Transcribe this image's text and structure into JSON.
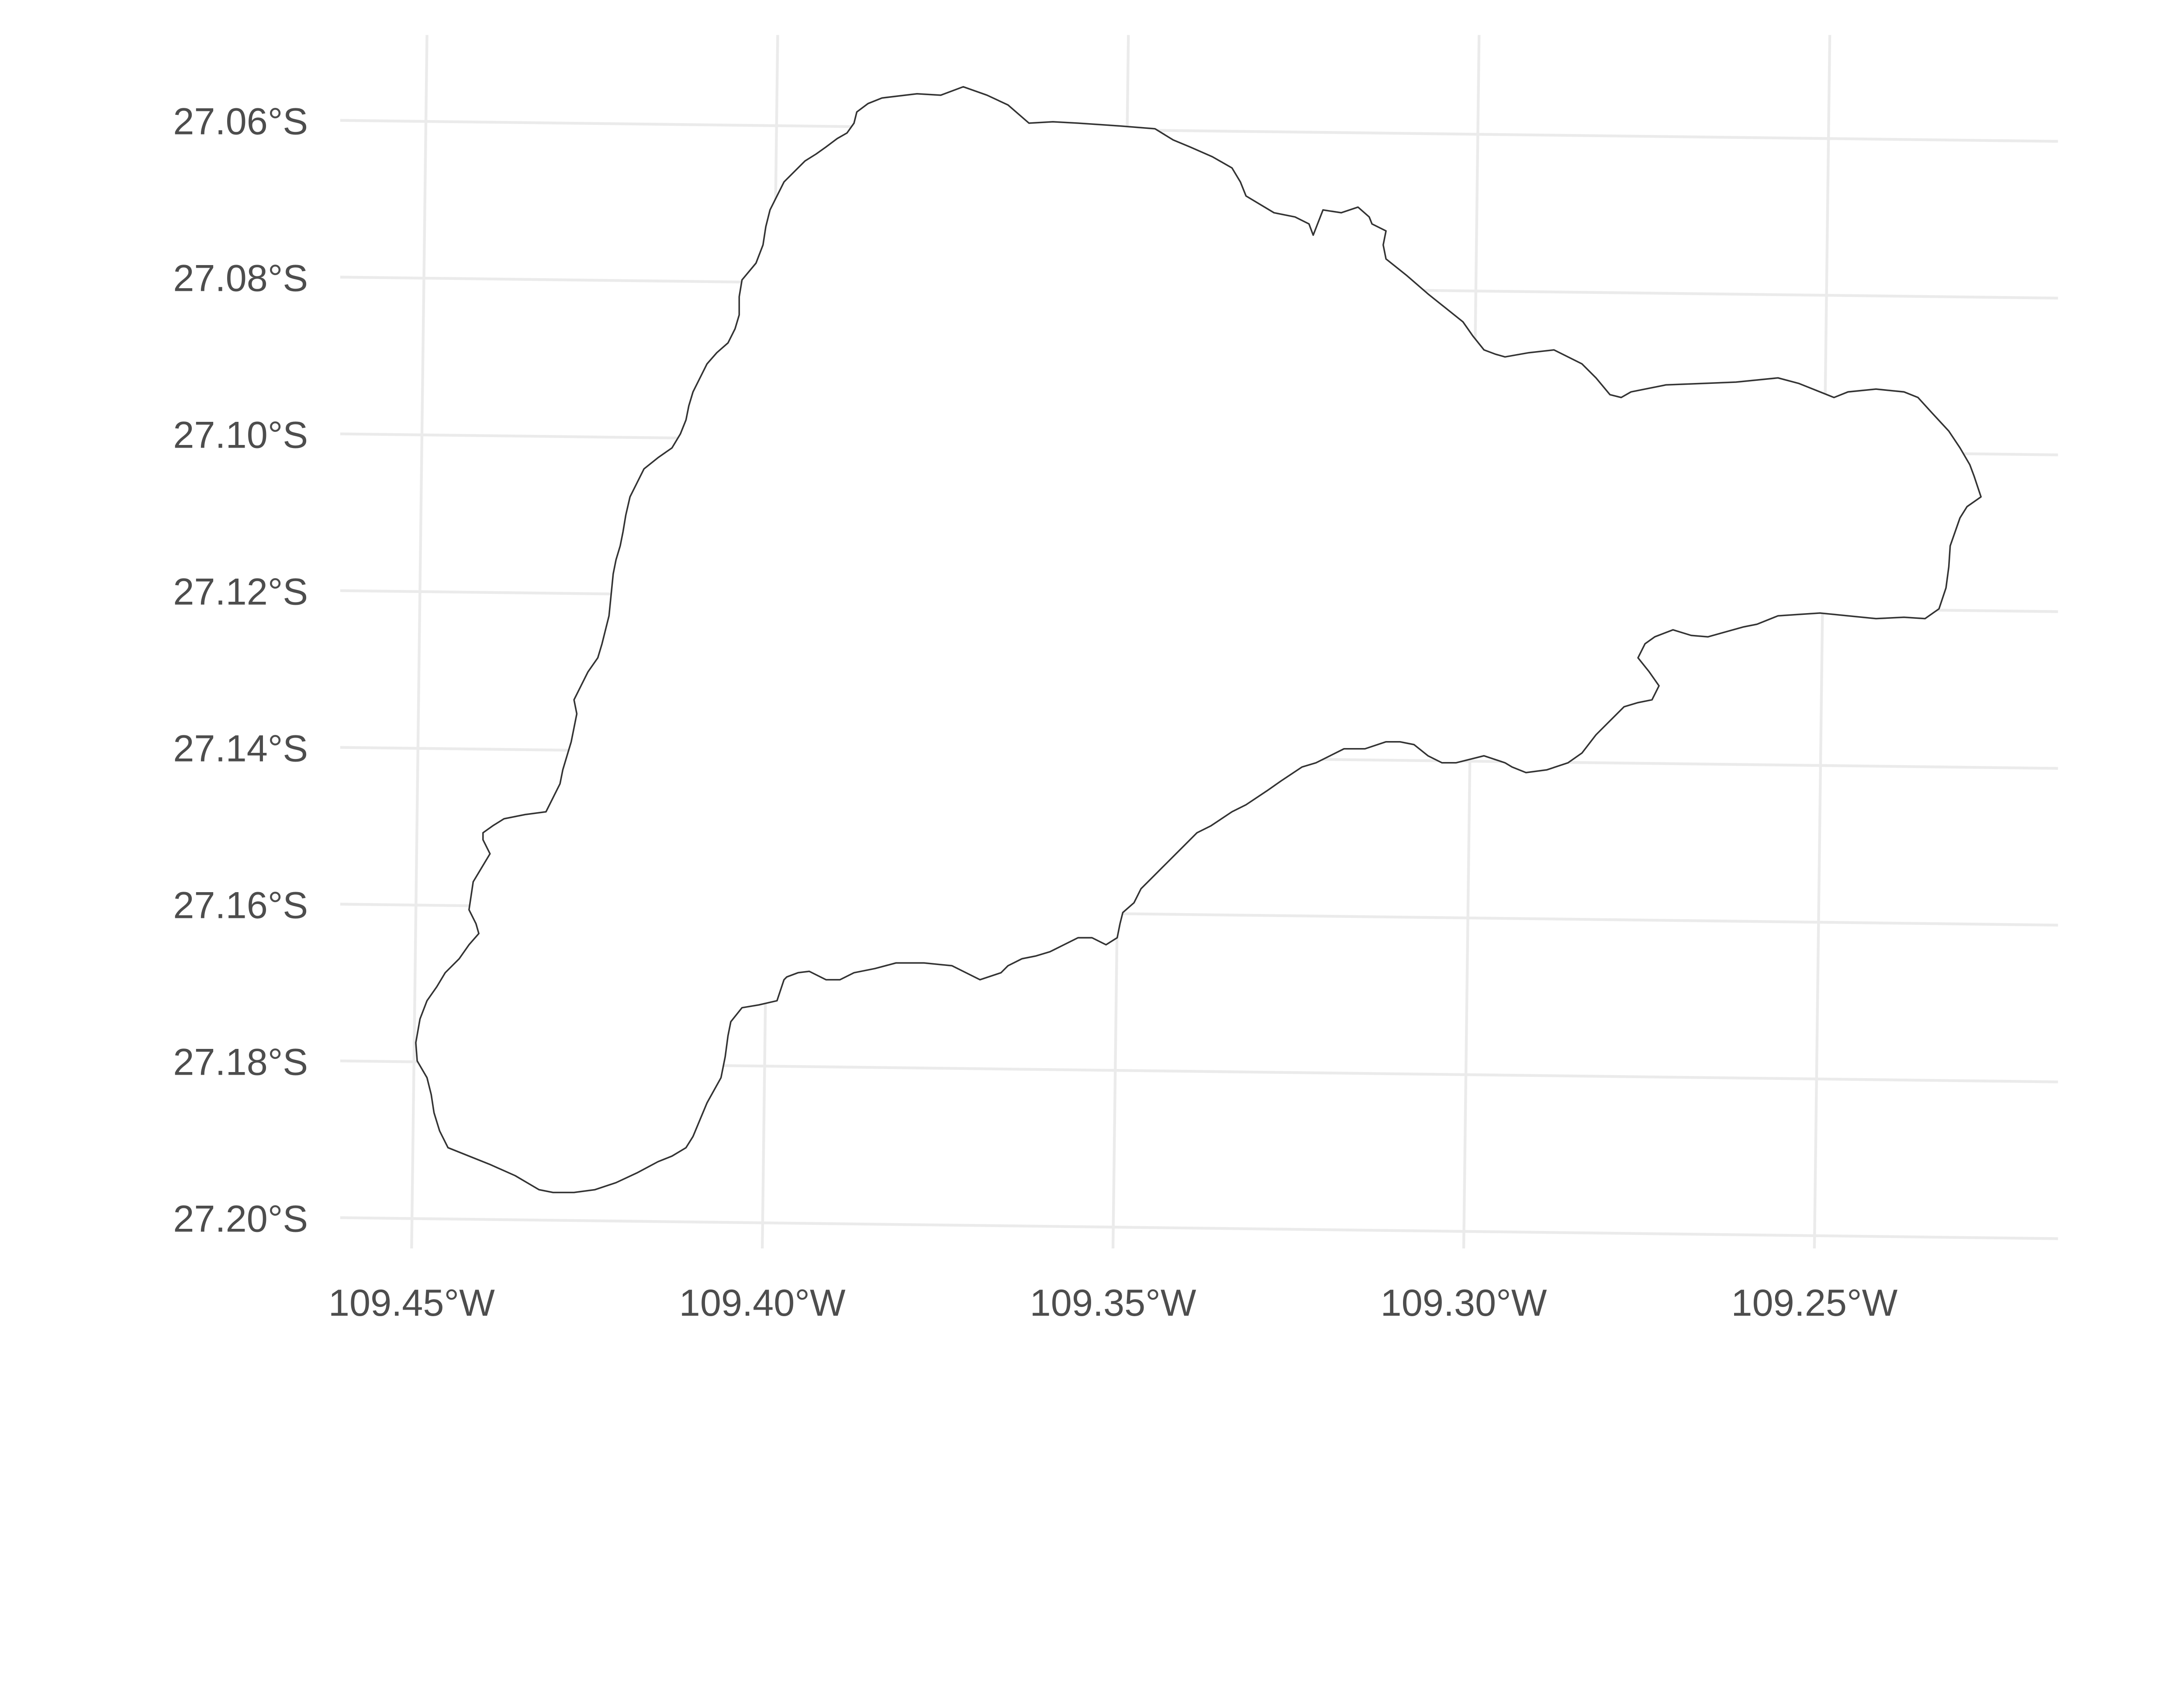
{
  "chart_data": {
    "type": "map",
    "title": "",
    "xlabel": "",
    "ylabel": "",
    "grid": true,
    "y_ticks": [
      "27.06°S",
      "27.08°S",
      "27.10°S",
      "27.12°S",
      "27.14°S",
      "27.16°S",
      "27.18°S",
      "27.20°S"
    ],
    "y_values": [
      -27.06,
      -27.08,
      -27.1,
      -27.12,
      -27.14,
      -27.16,
      -27.18,
      -27.2
    ],
    "x_ticks": [
      "109.45°W",
      "109.40°W",
      "109.35°W",
      "109.30°W",
      "109.25°W"
    ],
    "x_values": [
      -109.45,
      -109.4,
      -109.35,
      -109.3,
      -109.25
    ],
    "xlim": [
      -109.455,
      -109.22
    ],
    "ylim": [
      -27.2,
      -27.055
    ],
    "features": [
      {
        "kind": "polygon",
        "fill": "#ffffff",
        "stroke": "#333333"
      }
    ],
    "colors": {
      "grid": "#ebebeb",
      "text": "#4d4d4d",
      "outline": "#333333"
    }
  }
}
